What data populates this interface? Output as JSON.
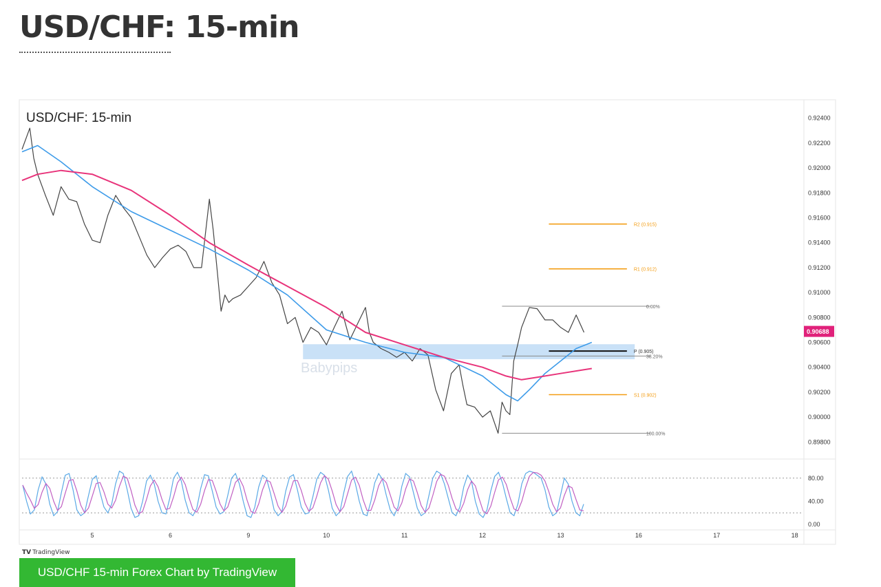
{
  "page": {
    "heading": "USD/CHF: 15-min",
    "caption": "USD/CHF 15-min Forex Chart by TradingView",
    "logo_mark": "TV",
    "logo_text": "TradingView"
  },
  "colors": {
    "price": "#444444",
    "ma_fast": "#3d9be9",
    "ma_slow": "#e8337a",
    "pivot_resistance": "#f39c12",
    "pivot_line": "#111111",
    "fib_line": "#888888",
    "zone": "#bcd9f5",
    "stoch_k": "#5aa9e6",
    "stoch_d": "#c05fc2",
    "price_badge": "#e0217a"
  },
  "chart_data": {
    "type": "line",
    "title": "USD/CHF: 15-min",
    "watermark": "Babypips",
    "x_ticks": [
      {
        "label": "5",
        "x": 5
      },
      {
        "label": "6",
        "x": 6
      },
      {
        "label": "9",
        "x": 7
      },
      {
        "label": "10",
        "x": 8
      },
      {
        "label": "11",
        "x": 9
      },
      {
        "label": "12",
        "x": 10
      },
      {
        "label": "13",
        "x": 11
      },
      {
        "label": "16",
        "x": 12
      },
      {
        "label": "17",
        "x": 13
      },
      {
        "label": "18",
        "x": 14
      }
    ],
    "xlim": [
      4.1,
      14.1
    ],
    "ylim": [
      0.8968,
      0.9252
    ],
    "y_ticks": [
      {
        "v": 0.924,
        "label": "0.92400"
      },
      {
        "v": 0.922,
        "label": "0.92200"
      },
      {
        "v": 0.92,
        "label": "0.92000"
      },
      {
        "v": 0.918,
        "label": "0.91800"
      },
      {
        "v": 0.916,
        "label": "0.91600"
      },
      {
        "v": 0.914,
        "label": "0.91400"
      },
      {
        "v": 0.912,
        "label": "0.91200"
      },
      {
        "v": 0.91,
        "label": "0.91000"
      },
      {
        "v": 0.908,
        "label": "0.90800"
      },
      {
        "v": 0.906,
        "label": "0.90600"
      },
      {
        "v": 0.904,
        "label": "0.90400"
      },
      {
        "v": 0.902,
        "label": "0.90200"
      },
      {
        "v": 0.9,
        "label": "0.90000"
      },
      {
        "v": 0.898,
        "label": "0.89800"
      }
    ],
    "current_price": {
      "v": 0.90688,
      "label": "0.90688"
    },
    "series": [
      {
        "name": "price",
        "x": [
          4.1,
          4.2,
          4.25,
          4.3,
          4.4,
          4.5,
          4.6,
          4.7,
          4.8,
          4.9,
          5.0,
          5.1,
          5.2,
          5.3,
          5.4,
          5.5,
          5.6,
          5.7,
          5.8,
          5.9,
          6.0,
          6.1,
          6.2,
          6.3,
          6.4,
          6.5,
          6.55,
          6.6,
          6.65,
          6.7,
          6.75,
          6.8,
          6.9,
          7.0,
          7.1,
          7.2,
          7.3,
          7.4,
          7.5,
          7.6,
          7.7,
          7.8,
          7.9,
          8.0,
          8.1,
          8.2,
          8.3,
          8.4,
          8.5,
          8.55,
          8.6,
          8.7,
          8.8,
          8.9,
          9.0,
          9.1,
          9.2,
          9.3,
          9.4,
          9.5,
          9.6,
          9.7,
          9.75,
          9.8,
          9.9,
          10.0,
          10.1,
          10.2,
          10.25,
          10.3,
          10.35,
          10.4,
          10.45,
          10.5,
          10.6,
          10.7,
          10.8,
          10.9,
          11.0,
          11.1,
          11.2,
          11.3
        ],
        "values": [
          0.9215,
          0.9232,
          0.9208,
          0.9195,
          0.9178,
          0.9162,
          0.9185,
          0.9175,
          0.9173,
          0.9155,
          0.9142,
          0.914,
          0.9162,
          0.9178,
          0.9168,
          0.916,
          0.9145,
          0.913,
          0.912,
          0.9128,
          0.9135,
          0.9138,
          0.9133,
          0.912,
          0.912,
          0.9175,
          0.915,
          0.9118,
          0.9085,
          0.9098,
          0.9092,
          0.9095,
          0.9098,
          0.9105,
          0.9112,
          0.9125,
          0.9108,
          0.9098,
          0.9075,
          0.908,
          0.906,
          0.9072,
          0.9068,
          0.9058,
          0.9072,
          0.9085,
          0.9062,
          0.9075,
          0.9088,
          0.9068,
          0.906,
          0.9055,
          0.9052,
          0.9048,
          0.9052,
          0.9045,
          0.9055,
          0.905,
          0.9022,
          0.9005,
          0.9035,
          0.9042,
          0.9025,
          0.901,
          0.9008,
          0.9,
          0.9005,
          0.8987,
          0.9012,
          0.9005,
          0.9002,
          0.9045,
          0.9058,
          0.9072,
          0.9088,
          0.9087,
          0.9078,
          0.9078,
          0.9072,
          0.9068,
          0.9082,
          0.9068
        ]
      },
      {
        "name": "fast MA",
        "x": [
          4.1,
          4.3,
          4.6,
          5.0,
          5.5,
          6.0,
          6.5,
          7.0,
          7.5,
          8.0,
          8.5,
          9.0,
          9.5,
          10.0,
          10.3,
          10.45,
          10.6,
          10.8,
          11.0,
          11.2,
          11.4
        ],
        "values": [
          0.9213,
          0.9218,
          0.9205,
          0.9185,
          0.9165,
          0.915,
          0.9135,
          0.9118,
          0.9098,
          0.907,
          0.906,
          0.9052,
          0.9048,
          0.9033,
          0.9018,
          0.9013,
          0.9022,
          0.9035,
          0.9045,
          0.9055,
          0.906
        ]
      },
      {
        "name": "slow MA",
        "x": [
          4.1,
          4.3,
          4.6,
          5.0,
          5.5,
          6.0,
          6.5,
          7.0,
          7.5,
          8.0,
          8.5,
          9.0,
          9.5,
          10.0,
          10.3,
          10.5,
          10.7,
          11.0,
          11.3,
          11.4
        ],
        "values": [
          0.919,
          0.9195,
          0.9198,
          0.9195,
          0.9182,
          0.9162,
          0.914,
          0.9122,
          0.9105,
          0.9088,
          0.9068,
          0.9058,
          0.9048,
          0.904,
          0.9033,
          0.903,
          0.9032,
          0.9035,
          0.9038,
          0.9039
        ]
      }
    ],
    "horizontal_levels": [
      {
        "label": "R2 (0.915)",
        "value": 0.9155,
        "x_start": 10.85,
        "x_end": 11.85,
        "kind": "pivot"
      },
      {
        "label": "R1 (0.912)",
        "value": 0.9119,
        "x_start": 10.85,
        "x_end": 11.85,
        "kind": "pivot"
      },
      {
        "label": "P (0.905)",
        "value": 0.9053,
        "x_start": 10.85,
        "x_end": 11.85,
        "kind": "pivot-main"
      },
      {
        "label": "S1 (0.902)",
        "value": 0.9018,
        "x_start": 10.85,
        "x_end": 11.85,
        "kind": "pivot"
      },
      {
        "label": "0.00%",
        "value": 0.9089,
        "x_start": 10.25,
        "x_end": 12.15,
        "kind": "fib"
      },
      {
        "label": "38.20%",
        "value": 0.9049,
        "x_start": 10.25,
        "x_end": 12.15,
        "kind": "fib"
      },
      {
        "label": "100.00%",
        "value": 0.8987,
        "x_start": 10.25,
        "x_end": 12.15,
        "kind": "fib"
      }
    ],
    "zone": {
      "x_start": 7.7,
      "x_end": 11.95,
      "y_low": 0.90465,
      "y_high": 0.90585
    },
    "stochastic": {
      "ylim": [
        0,
        100
      ],
      "y_ticks": [
        {
          "v": 80,
          "label": "80.00"
        },
        {
          "v": 40,
          "label": "40.00"
        },
        {
          "v": 0,
          "label": "0.00"
        }
      ],
      "overbought": 80,
      "oversold": 20,
      "k": [
        68,
        40,
        18,
        25,
        60,
        82,
        70,
        35,
        15,
        22,
        55,
        85,
        88,
        60,
        25,
        15,
        20,
        50,
        78,
        84,
        55,
        30,
        20,
        35,
        70,
        92,
        88,
        60,
        28,
        12,
        15,
        40,
        75,
        85,
        70,
        40,
        20,
        18,
        45,
        80,
        90,
        75,
        42,
        20,
        15,
        28,
        62,
        86,
        84,
        58,
        30,
        18,
        22,
        50,
        80,
        88,
        70,
        40,
        15,
        12,
        30,
        65,
        85,
        80,
        55,
        25,
        15,
        22,
        58,
        82,
        86,
        60,
        30,
        18,
        20,
        48,
        78,
        90,
        85,
        60,
        28,
        15,
        22,
        55,
        83,
        92,
        70,
        40,
        18,
        15,
        40,
        72,
        88,
        78,
        50,
        25,
        15,
        30,
        66,
        88,
        82,
        55,
        28,
        15,
        20,
        50,
        80,
        92,
        88,
        70,
        45,
        20,
        15,
        30,
        65,
        85,
        75,
        40,
        18,
        12,
        25,
        58,
        83,
        90,
        72,
        45,
        20,
        15,
        35,
        70,
        88,
        92,
        90,
        85,
        80,
        60,
        30,
        15,
        20,
        50,
        80,
        70,
        40,
        20,
        15,
        35
      ]
    }
  }
}
